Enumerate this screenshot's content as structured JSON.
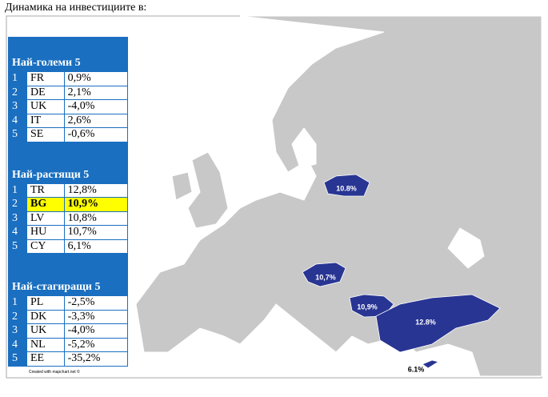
{
  "title": "Динамика на инвестициите в:",
  "tables": [
    {
      "header": "Най-големи 5",
      "rows": [
        [
          "1",
          "FR",
          "0,9%"
        ],
        [
          "2",
          "DE",
          "2,1%"
        ],
        [
          "3",
          "UK",
          "-4,0%"
        ],
        [
          "4",
          "IT",
          "2,6%"
        ],
        [
          "5",
          "SE",
          "-0,6%"
        ]
      ]
    },
    {
      "header": "Най-растящи 5",
      "rows": [
        [
          "1",
          "TR",
          "12,8%"
        ],
        [
          "2",
          "BG",
          "10,9%"
        ],
        [
          "3",
          "LV",
          "10,8%"
        ],
        [
          "4",
          "HU",
          "10,7%"
        ],
        [
          "5",
          "CY",
          "6,1%"
        ]
      ]
    },
    {
      "header": "Най-стагиращи 5",
      "rows": [
        [
          "1",
          "PL",
          "-2,5%"
        ],
        [
          "2",
          "DK",
          "-3,3%"
        ],
        [
          "3",
          "UK",
          "-4,0%"
        ],
        [
          "4",
          "NL",
          "-5,2%"
        ],
        [
          "5",
          "EE",
          "-35,2%"
        ]
      ]
    }
  ],
  "map_labels": [
    "10.8%",
    "10,7%",
    "10,9%",
    "12.8%",
    "6.1%"
  ],
  "credit": "Created with mapchart.net ©"
}
